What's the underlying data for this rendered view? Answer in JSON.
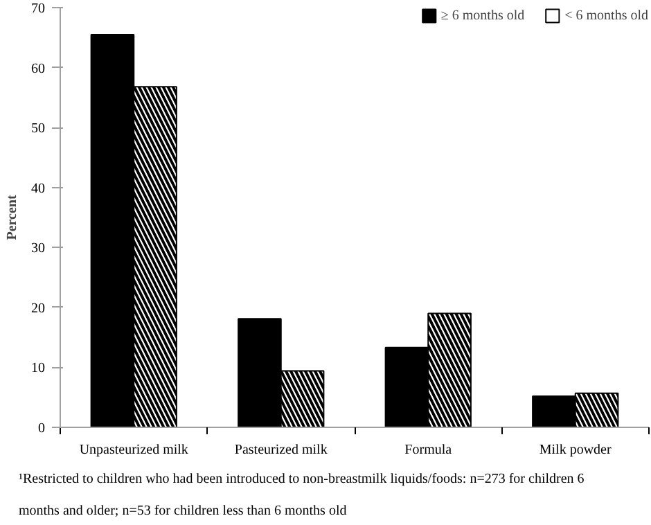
{
  "chart_data": {
    "type": "bar",
    "ylabel": "Percent",
    "categories": [
      "Unpasteurized milk",
      "Pasteurized milk",
      "Formula",
      "Milk powder"
    ],
    "series": [
      {
        "name": "≥ 6 months old",
        "color": "#000000",
        "values": [
          65.5,
          18.1,
          13.3,
          5.2
        ]
      },
      {
        "name": "< 6 months old",
        "color": "#ffffff",
        "values": [
          56.8,
          9.4,
          19.0,
          5.7
        ]
      }
    ],
    "ylim": [
      0,
      70
    ],
    "yticks": [
      0,
      10,
      20,
      30,
      40,
      50,
      60,
      70
    ],
    "grid": false,
    "legend": "top right",
    "annotations": [
      "¹Restricted to children who had been introduced to non-breastmilk liquids/foods: n=273 for children 6 months and older; n=53 for children less than 6 months old"
    ]
  }
}
